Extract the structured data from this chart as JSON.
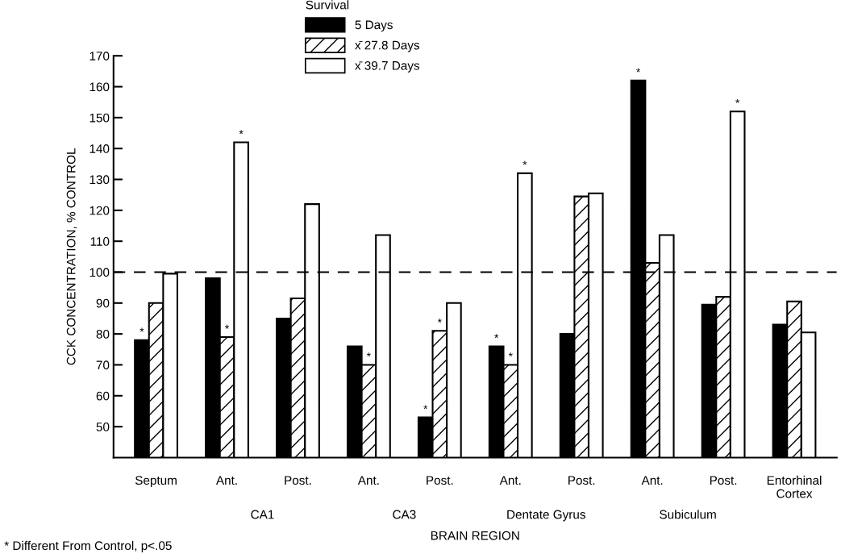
{
  "chart_data": {
    "type": "bar",
    "categories": [
      "Septum",
      "Ant.",
      "Post.",
      "Ant.",
      "Post.",
      "Ant.",
      "Post.",
      "Ant.",
      "Post.",
      "Entorhinal\nCortex"
    ],
    "series": [
      {
        "name": "5 Days",
        "color": "#000000",
        "values": [
          78,
          98,
          85,
          76,
          53,
          76,
          80,
          162,
          89.5,
          83
        ],
        "value_labels": [
          "*",
          null,
          null,
          null,
          "*",
          "*",
          null,
          "*",
          null,
          null
        ]
      },
      {
        "name": "x̄ 27.8 Days",
        "color": "#ffffff",
        "values": [
          90,
          79,
          91.5,
          70,
          81,
          70,
          124.5,
          103,
          92,
          90.5
        ],
        "value_labels": [
          null,
          "*",
          null,
          "*",
          "*",
          "*",
          null,
          null,
          null,
          null
        ]
      },
      {
        "name": "x̄ 39.7 Days",
        "color": "#ffffff",
        "values": [
          99.5,
          142,
          122,
          112,
          90,
          132,
          125.5,
          112,
          152,
          80.5
        ],
        "value_labels": [
          null,
          "*",
          null,
          null,
          null,
          "*",
          null,
          null,
          "*",
          null
        ]
      }
    ],
    "xlabel": "BRAIN REGION",
    "ylabel": "CCK CONCENTRATION, % CONTROL",
    "legend_title": "Survival",
    "ylim": [
      40,
      170
    ],
    "yticks": [
      50,
      60,
      70,
      80,
      90,
      100,
      110,
      120,
      130,
      140,
      150,
      160,
      170
    ],
    "ref_lines": [
      {
        "axis": "y",
        "value": 100,
        "line_style": "dashed",
        "color": "#000000"
      }
    ],
    "annotations": [
      "CA1",
      "CA3",
      "Dentate Gyrus",
      "Subiculum",
      "* Different From Control, p<.05"
    ],
    "legend": "top",
    "grid": false
  }
}
